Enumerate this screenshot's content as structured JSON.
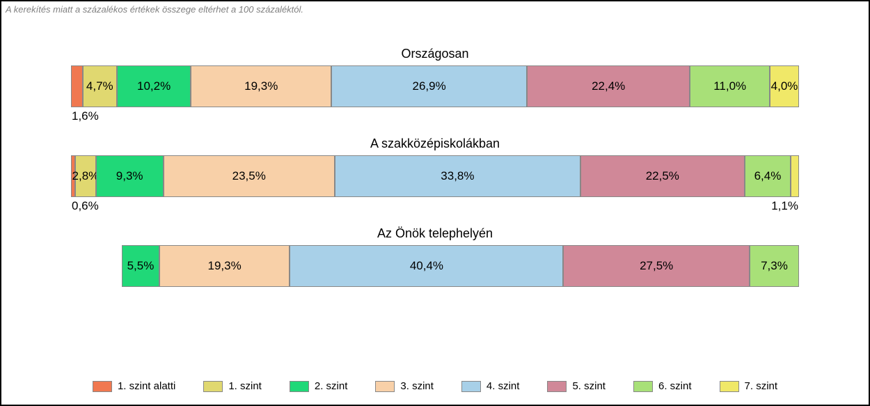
{
  "footnote": "A kerekítés miatt a százalékos értékek összege eltérhet a 100 százaléktól.",
  "colors": {
    "c0": "#f07850",
    "c1": "#e0d870",
    "c2": "#20d878",
    "c3": "#f8d0a8",
    "c4": "#a8d0e8",
    "c5": "#d08898",
    "c6": "#a8e078",
    "c7": "#f0e868"
  },
  "legend": [
    {
      "key": "c0",
      "label": "1. szint alatti"
    },
    {
      "key": "c1",
      "label": "1. szint"
    },
    {
      "key": "c2",
      "label": "2. szint"
    },
    {
      "key": "c3",
      "label": "3. szint"
    },
    {
      "key": "c4",
      "label": "4. szint"
    },
    {
      "key": "c5",
      "label": "5. szint"
    },
    {
      "key": "c6",
      "label": "6. szint"
    },
    {
      "key": "c7",
      "label": "7. szint"
    }
  ],
  "rows": [
    {
      "title": "Országosan",
      "offset_pct": 0,
      "width_pct": 100,
      "segments": [
        {
          "c": "c0",
          "v": 1.6,
          "label": "1,6%",
          "pos": "below"
        },
        {
          "c": "c1",
          "v": 4.7,
          "label": "4,7%",
          "pos": "in"
        },
        {
          "c": "c2",
          "v": 10.2,
          "label": "10,2%",
          "pos": "in"
        },
        {
          "c": "c3",
          "v": 19.3,
          "label": "19,3%",
          "pos": "in"
        },
        {
          "c": "c4",
          "v": 26.9,
          "label": "26,9%",
          "pos": "in"
        },
        {
          "c": "c5",
          "v": 22.4,
          "label": "22,4%",
          "pos": "in"
        },
        {
          "c": "c6",
          "v": 11.0,
          "label": "11,0%",
          "pos": "in"
        },
        {
          "c": "c7",
          "v": 4.0,
          "label": "4,0%",
          "pos": "in"
        }
      ]
    },
    {
      "title": "A szakközépiskolákban",
      "offset_pct": 0,
      "width_pct": 100,
      "segments": [
        {
          "c": "c0",
          "v": 0.6,
          "label": "0,6%",
          "pos": "below"
        },
        {
          "c": "c1",
          "v": 2.8,
          "label": "2,8%",
          "pos": "in"
        },
        {
          "c": "c2",
          "v": 9.3,
          "label": "9,3%",
          "pos": "in"
        },
        {
          "c": "c3",
          "v": 23.5,
          "label": "23,5%",
          "pos": "in"
        },
        {
          "c": "c4",
          "v": 33.8,
          "label": "33,8%",
          "pos": "in"
        },
        {
          "c": "c5",
          "v": 22.5,
          "label": "22,5%",
          "pos": "in"
        },
        {
          "c": "c6",
          "v": 6.4,
          "label": "6,4%",
          "pos": "in"
        },
        {
          "c": "c7",
          "v": 1.1,
          "label": "1,1%",
          "pos": "below-right"
        }
      ]
    },
    {
      "title": "Az Önök telephelyén",
      "offset_pct": 7,
      "width_pct": 93,
      "segments": [
        {
          "c": "c2",
          "v": 5.5,
          "label": "5,5%",
          "pos": "in"
        },
        {
          "c": "c3",
          "v": 19.3,
          "label": "19,3%",
          "pos": "in"
        },
        {
          "c": "c4",
          "v": 40.4,
          "label": "40,4%",
          "pos": "in"
        },
        {
          "c": "c5",
          "v": 27.5,
          "label": "27,5%",
          "pos": "in"
        },
        {
          "c": "c6",
          "v": 7.3,
          "label": "7,3%",
          "pos": "in"
        }
      ]
    }
  ]
}
